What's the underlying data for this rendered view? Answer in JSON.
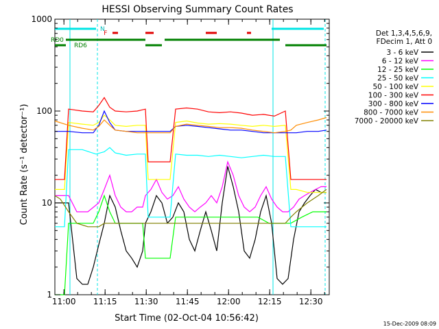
{
  "chart_data": {
    "type": "line",
    "title": "HESSI Observing Summary Count Rates",
    "xlabel": "Start Time (02-Oct-04 10:56:42)",
    "ylabel": "Count Rate (s⁻¹ detector⁻¹)",
    "x_unit": "minutes since 10:56:42",
    "xlim": [
      0,
      100
    ],
    "ylim": [
      1,
      1000
    ],
    "y_scale": "log",
    "x_ticks": [
      {
        "t": 3.3,
        "label": "11:00"
      },
      {
        "t": 18.3,
        "label": "11:15"
      },
      {
        "t": 33.3,
        "label": "11:30"
      },
      {
        "t": 48.3,
        "label": "11:45"
      },
      {
        "t": 63.3,
        "label": "12:00"
      },
      {
        "t": 78.3,
        "label": "12:15"
      },
      {
        "t": 93.3,
        "label": "12:30"
      }
    ],
    "y_ticks": [
      {
        "v": 1,
        "label": "1"
      },
      {
        "v": 10,
        "label": "10"
      },
      {
        "v": 100,
        "label": "100"
      },
      {
        "v": 1000,
        "label": "1000"
      }
    ],
    "grid": false,
    "legend_position": "right",
    "legend_header": [
      "Det 1,3,4,5,6,9,",
      "FDecim 1, Att 0"
    ],
    "series": [
      {
        "name": "3 - 6 keV",
        "color": "#000000",
        "x": [
          0,
          2,
          5,
          8,
          10,
          12,
          14,
          16,
          18,
          20,
          22,
          24,
          26,
          28,
          30,
          32,
          33,
          35,
          37,
          39,
          41,
          43,
          45,
          47,
          49,
          51,
          53,
          55,
          57,
          59,
          61,
          63,
          65,
          67,
          69,
          71,
          73,
          75,
          77,
          79,
          81,
          83,
          85,
          87,
          89,
          91,
          93,
          95,
          97,
          99
        ],
        "y": [
          10,
          10,
          10,
          1.5,
          1.3,
          1.3,
          2,
          3.5,
          6,
          12,
          9,
          5,
          3,
          2.5,
          2,
          3,
          6,
          8,
          12,
          10,
          6,
          7,
          10,
          8,
          4,
          3,
          5,
          8,
          5,
          3,
          10,
          25,
          15,
          8,
          3,
          2.5,
          4,
          8,
          12,
          6,
          1.5,
          1.3,
          1.5,
          4,
          8,
          10,
          12,
          14,
          13,
          13
        ]
      },
      {
        "name": "6 - 12 keV",
        "color": "#ff00ff",
        "x": [
          0,
          2,
          5,
          8,
          12,
          16,
          18,
          20,
          22,
          24,
          26,
          28,
          30,
          32,
          33,
          35,
          37,
          39,
          41,
          43,
          45,
          47,
          49,
          51,
          53,
          55,
          57,
          59,
          61,
          63,
          65,
          67,
          69,
          71,
          73,
          75,
          77,
          79,
          81,
          83,
          85,
          87,
          89,
          91,
          93,
          95,
          97,
          99
        ],
        "y": [
          12,
          12,
          12,
          8,
          8,
          10,
          14,
          20,
          12,
          9,
          8,
          8,
          9,
          9,
          12,
          14,
          18,
          13,
          11,
          12,
          15,
          11,
          9,
          8,
          9,
          10,
          12,
          10,
          15,
          28,
          20,
          12,
          9,
          8,
          9,
          12,
          15,
          11,
          9,
          8,
          8,
          9,
          11,
          12,
          13,
          14,
          15,
          15
        ]
      },
      {
        "name": "12 - 25 keV",
        "color": "#00ff00",
        "x": [
          0,
          2,
          3.5,
          5,
          10,
          14,
          16,
          18,
          20,
          22,
          24,
          26,
          28,
          30,
          32,
          33,
          34,
          36,
          38,
          40,
          42,
          44,
          46,
          48,
          50,
          54,
          58,
          62,
          66,
          70,
          74,
          78,
          82,
          86,
          90,
          94,
          99
        ],
        "y": [
          1,
          1,
          1,
          6,
          6,
          6,
          8,
          12,
          8,
          6,
          6,
          6,
          6,
          6,
          6,
          2.5,
          2.5,
          2.5,
          2.5,
          2.5,
          2.5,
          7,
          7,
          7,
          7,
          7,
          7,
          7,
          7,
          7,
          7,
          6,
          6,
          6,
          7,
          8,
          8
        ]
      },
      {
        "name": "25 - 50 keV",
        "color": "#00ffff",
        "x": [
          0,
          3.5,
          5,
          10,
          15,
          18,
          20,
          22,
          26,
          30,
          33,
          34,
          38,
          41,
          42,
          44,
          48,
          52,
          56,
          60,
          64,
          68,
          72,
          76,
          80,
          84,
          86,
          88,
          92,
          96,
          99
        ],
        "y": [
          5.5,
          5.5,
          38,
          38,
          34,
          36,
          40,
          35,
          33,
          34,
          34,
          7,
          7,
          7,
          7,
          34,
          33,
          33,
          32,
          33,
          32,
          31,
          32,
          33,
          32,
          32,
          5.5,
          5.5,
          5.5,
          5.5,
          5.5
        ]
      },
      {
        "name": "50 - 100 keV",
        "color": "#ffff00",
        "x": [
          0,
          3.5,
          5,
          10,
          14,
          16,
          18,
          20,
          22,
          26,
          30,
          33,
          34,
          38,
          41,
          42,
          44,
          48,
          52,
          56,
          60,
          64,
          68,
          72,
          76,
          80,
          84,
          86,
          88,
          92,
          96,
          99
        ],
        "y": [
          14,
          14,
          75,
          72,
          70,
          75,
          90,
          80,
          70,
          68,
          70,
          70,
          18,
          18,
          18,
          18,
          75,
          78,
          74,
          72,
          73,
          72,
          70,
          68,
          70,
          68,
          70,
          14,
          14,
          13,
          13,
          13
        ]
      },
      {
        "name": "100 - 300 keV",
        "color": "#ff0000",
        "x": [
          0,
          3.5,
          5,
          10,
          14,
          16,
          18,
          20,
          22,
          26,
          30,
          33,
          34,
          38,
          41,
          42,
          44,
          48,
          52,
          56,
          60,
          64,
          68,
          72,
          76,
          80,
          84,
          86,
          88,
          92,
          96,
          99
        ],
        "y": [
          18,
          18,
          105,
          100,
          98,
          115,
          140,
          110,
          100,
          98,
          100,
          105,
          28,
          28,
          28,
          28,
          105,
          108,
          105,
          98,
          96,
          98,
          95,
          90,
          92,
          88,
          100,
          18,
          18,
          18,
          18,
          18
        ]
      },
      {
        "name": "300 - 800 keV",
        "color": "#0000ff",
        "x": [
          0,
          5,
          10,
          14,
          16,
          18,
          20,
          22,
          26,
          30,
          33,
          34,
          38,
          41,
          42,
          44,
          48,
          52,
          56,
          60,
          64,
          68,
          72,
          76,
          80,
          84,
          86,
          88,
          92,
          96,
          99
        ],
        "y": [
          60,
          60,
          58,
          58,
          70,
          100,
          75,
          62,
          60,
          60,
          60,
          60,
          60,
          60,
          60,
          68,
          70,
          68,
          66,
          64,
          62,
          62,
          60,
          58,
          58,
          58,
          58,
          58,
          60,
          60,
          62
        ]
      },
      {
        "name": "800 - 7000 keV",
        "color": "#ff8c00",
        "x": [
          0,
          5,
          10,
          14,
          16,
          18,
          20,
          22,
          26,
          30,
          33,
          34,
          38,
          42,
          44,
          48,
          52,
          56,
          60,
          64,
          68,
          72,
          76,
          80,
          84,
          86,
          88,
          92,
          96,
          99
        ],
        "y": [
          78,
          70,
          65,
          62,
          68,
          80,
          70,
          62,
          60,
          58,
          58,
          58,
          58,
          58,
          68,
          72,
          70,
          68,
          66,
          66,
          65,
          62,
          60,
          58,
          60,
          62,
          70,
          75,
          80,
          85
        ]
      },
      {
        "name": "7000 - 20000 keV",
        "color": "#808000",
        "x": [
          0,
          2,
          5,
          8,
          12,
          16,
          18,
          20,
          22,
          26,
          30,
          33,
          34,
          38,
          42,
          44,
          48,
          52,
          56,
          60,
          64,
          68,
          72,
          76,
          80,
          84,
          86,
          88,
          92,
          96,
          99
        ],
        "y": [
          12,
          11,
          8,
          6,
          5.5,
          5.5,
          6,
          6,
          6,
          6,
          6,
          6,
          6,
          6,
          6,
          6,
          6,
          6,
          6,
          6,
          6,
          6,
          6,
          6,
          6,
          6,
          7,
          8,
          10,
          12,
          14
        ]
      }
    ],
    "annotations": {
      "cyan_bars": [
        [
          0,
          15
        ],
        [
          79,
          98
        ]
      ],
      "cyan_bar_label": "N",
      "red_bars": [
        [
          21,
          23
        ],
        [
          33,
          36
        ],
        [
          55,
          59
        ],
        [
          70,
          71.5
        ]
      ],
      "red_bar_label": "F",
      "rd0_bars": [
        [
          4,
          33
        ],
        [
          40,
          82
        ]
      ],
      "rd0_label": "RD0",
      "rd6_bars": [
        [
          0,
          4
        ],
        [
          33,
          39
        ],
        [
          84,
          99
        ]
      ],
      "rd6_label": "RD6",
      "vlines_solid": [
        5.5,
        79.5
      ],
      "vlines_dashed": [
        15.5,
        98.5
      ]
    }
  },
  "footer_timestamp": "15-Dec-2009 08:09"
}
